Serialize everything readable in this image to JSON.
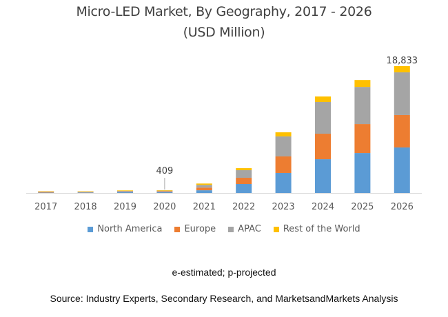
{
  "chart_data": {
    "type": "bar",
    "stacked": true,
    "title": "Micro-LED Market, By Geography, 2017 - 2026",
    "subtitle": "(USD Million)",
    "xlabel": "",
    "ylabel": "",
    "ylim": [
      0,
      20000
    ],
    "grid": false,
    "legend_position": "bottom",
    "categories": [
      "2017",
      "2018",
      "2019",
      "2020",
      "2021",
      "2022",
      "2023",
      "2024",
      "2025",
      "2026"
    ],
    "series": [
      {
        "name": "North America",
        "color": "#5B9BD5",
        "values": [
          60,
          80,
          120,
          130,
          400,
          1330,
          2970,
          5010,
          5930,
          6760
        ]
      },
      {
        "name": "Europe",
        "color": "#ED7D31",
        "values": [
          100,
          50,
          60,
          110,
          400,
          920,
          2460,
          3790,
          4300,
          4810
        ]
      },
      {
        "name": "APAC",
        "color": "#A5A5A5",
        "values": [
          30,
          50,
          130,
          100,
          400,
          1130,
          2970,
          4710,
          5520,
          6350
        ]
      },
      {
        "name": "Rest of the World",
        "color": "#FFC000",
        "values": [
          60,
          70,
          70,
          69,
          200,
          300,
          610,
          820,
          1020,
          913
        ]
      }
    ],
    "annotations": [
      {
        "category": "2020",
        "text": "409",
        "leader_line": true
      },
      {
        "category": "2026",
        "text": "18,833",
        "leader_line": false
      }
    ]
  },
  "notes": {
    "estimate_note": "e-estimated; p-projected",
    "source": "Source: Industry Experts, Secondary Research, and MarketsandMarkets Analysis"
  }
}
